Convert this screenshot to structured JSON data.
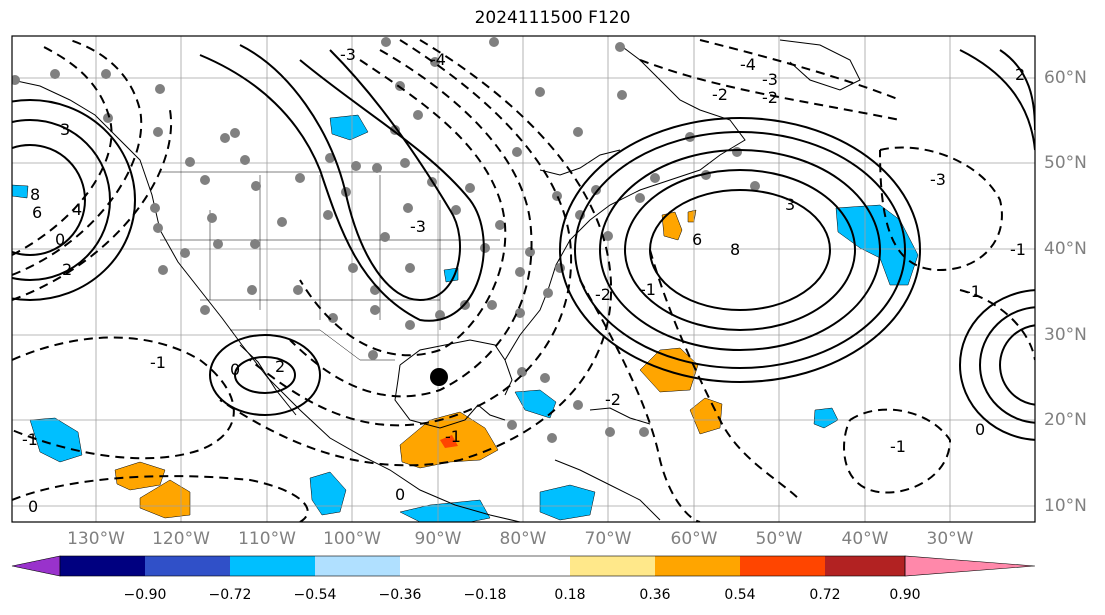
{
  "title": "2024111500 F120",
  "lon_labels": [
    "130°W",
    "120°W",
    "110°W",
    "100°W",
    "90°W",
    "80°W",
    "70°W",
    "60°W",
    "50°W",
    "40°W",
    "30°W"
  ],
  "lat_labels": [
    "60°N",
    "50°N",
    "40°N",
    "30°N",
    "20°N",
    "10°N"
  ],
  "colorbar": {
    "colors": [
      "#9932cc",
      "#000080",
      "#3050c8",
      "#00bfff",
      "#b0e0ff",
      "#ffffff",
      "#ffe88a",
      "#ffa500",
      "#ff4500",
      "#b22222",
      "#ff88aa"
    ],
    "ticks": [
      "−0.90",
      "−0.72",
      "−0.54",
      "−0.36",
      "−0.18",
      "0.18",
      "0.36",
      "0.54",
      "0.72",
      "0.90"
    ]
  },
  "contour_labels": [
    "3",
    "8",
    "6",
    "4",
    "2",
    "0",
    "-3",
    "-1",
    "0",
    "2",
    "-4",
    "-3",
    "-2",
    "-2",
    "-3",
    "3",
    "6",
    "8",
    "-4",
    "-3",
    "-2",
    "-1",
    "-1",
    "-1",
    "2",
    "-1",
    "-1",
    "0",
    "0",
    "-2",
    "0",
    "-1"
  ],
  "map_style": {
    "grid_color": "#a0a0a0",
    "coast_color": "#000000",
    "contour_color": "#000000",
    "station_color": "#808080"
  }
}
